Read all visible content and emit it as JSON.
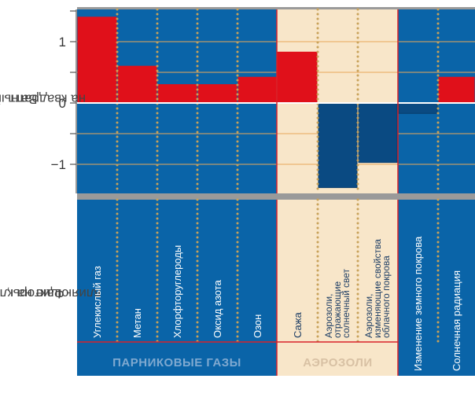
{
  "y_axis": {
    "title_line1": "Ватт",
    "title_line2": "на квадратный метр"
  },
  "factors_axis": {
    "title_line1": "Факторы,",
    "title_line2": "влияющие на климат"
  },
  "groups": [
    {
      "label": "ПАРНИКОВЫЕ ГАЗЫ",
      "text_color": "#7fa9d0"
    },
    {
      "label": "АЭРОЗОЛИ",
      "text_color": "#d8c1a4"
    }
  ],
  "colors": {
    "blue_bg": "#0a64a8",
    "beige_bg": "#f8e6c9",
    "positive_bar": "#e0101a",
    "negative_bar": "#0a4a82",
    "zero_line": "#ffffff",
    "grid_line": "#e8a85a",
    "dotted_line": "#c8a25a",
    "divider": "#d7222a"
  },
  "chart_data": {
    "type": "bar",
    "categories": [
      "Углекислый газ",
      "Метан",
      "Хлорфторуглероды",
      "Оксид азота",
      "Озон",
      "Сажа",
      "Аэрозоли, отражающие солнечный свет",
      "Аэрозоли, изменяющие свойства облачного покрова",
      "Изменение земного покрова",
      "Солнечная радиация"
    ],
    "category_lines": [
      [
        "Углекислый газ"
      ],
      [
        "Метан"
      ],
      [
        "Хлорфторуглероды"
      ],
      [
        "Оксид азота"
      ],
      [
        "Озон"
      ],
      [
        "Сажа"
      ],
      [
        "Аэрозоли,",
        "отражающие",
        "солнечный свет"
      ],
      [
        "Аэрозоли,",
        "изменяющие свойства",
        "облачного покрова"
      ],
      [
        "Изменение земного покрова"
      ],
      [
        "Солнечная радиация"
      ]
    ],
    "values": [
      1.4,
      0.6,
      0.3,
      0.3,
      0.42,
      0.83,
      -1.38,
      -0.97,
      -0.17,
      0.42
    ],
    "category_groups": [
      "ПАРНИКОВЫЕ ГАЗЫ",
      "ПАРНИКОВЫЕ ГАЗЫ",
      "ПАРНИКОВЫЕ ГАЗЫ",
      "ПАРНИКОВЫЕ ГАЗЫ",
      "ПАРНИКОВЫЕ ГАЗЫ",
      "АЭРОЗОЛИ",
      "АЭРОЗОЛИ",
      "АЭРОЗОЛИ",
      "",
      ""
    ],
    "y_ticks": [
      {
        "value": 1,
        "label": "1"
      },
      {
        "value": 0,
        "label": "0"
      },
      {
        "value": -1,
        "label": "−1"
      }
    ],
    "ylim": [
      -1.5,
      1.5
    ],
    "grid": true
  }
}
